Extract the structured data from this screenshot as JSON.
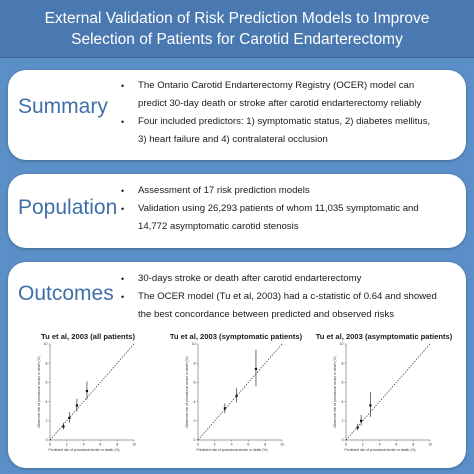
{
  "title": {
    "line1": "External Validation of Risk Prediction Models to Improve",
    "line2": "Selection of Patients for Carotid Endarterectomy"
  },
  "summary": {
    "label": "Summary",
    "bullets": [
      {
        "l1": "The Ontario Carotid Endarterectomy Registry (OCER) model can",
        "l2": "predict 30-day death or stroke after carotid endarterectomy reliably"
      },
      {
        "l1": "Four included predictors: 1) symptomatic status, 2) diabetes mellitus,",
        "l2": "3) heart failure and 4) contralateral occlusion"
      }
    ]
  },
  "population": {
    "label": "Population",
    "bullets": [
      {
        "l1": "Assessment of 17 risk prediction models",
        "l2": ""
      },
      {
        "l1": "Validation using 26,293 patients of whom 11,035 symptomatic and",
        "l2": "14,772 asymptomatic carotid stenosis"
      }
    ]
  },
  "outcomes": {
    "label": "Outcomes",
    "bullets": [
      {
        "l1": "30-days stroke or death after carotid endarterectomy",
        "l2": ""
      },
      {
        "l1": "The OCER model (Tu et al, 2003) had a c-statistic of 0.64 and showed",
        "l2": "the best concordance between predicted and observed risks"
      }
    ]
  },
  "bullet_glyph": "•",
  "colors": {
    "background": "#5b8fc7",
    "title_bar": "#4a78b0",
    "label": "#3f6fa8"
  },
  "chart_data": [
    {
      "type": "scatter",
      "title": "Tu et al, 2003 (all patients)",
      "xlabel": "Predicted risk of procedural stroke or death (%)",
      "ylabel": "Observed risk of procedural stroke or death (%)",
      "xlim": [
        0,
        10
      ],
      "ylim": [
        0,
        10
      ],
      "ticks": [
        0,
        2,
        4,
        6,
        8,
        10
      ],
      "reference_line": "diagonal",
      "points": [
        {
          "x": 1.6,
          "y": 1.4,
          "lo": 1.1,
          "hi": 1.8
        },
        {
          "x": 2.3,
          "y": 2.3,
          "lo": 1.8,
          "hi": 2.9
        },
        {
          "x": 3.2,
          "y": 3.6,
          "lo": 3.0,
          "hi": 4.3
        },
        {
          "x": 4.4,
          "y": 5.1,
          "lo": 4.2,
          "hi": 6.1
        }
      ]
    },
    {
      "type": "scatter",
      "title": "Tu et al, 2003 (symptomatic patients)",
      "xlabel": "Predicted risk of procedural stroke or death (%)",
      "ylabel": "Observed risk of procedural stroke or death (%)",
      "xlim": [
        0,
        10
      ],
      "ylim": [
        0,
        10
      ],
      "ticks": [
        0,
        2,
        4,
        6,
        8,
        10
      ],
      "reference_line": "diagonal",
      "points": [
        {
          "x": 3.2,
          "y": 3.3,
          "lo": 2.8,
          "hi": 3.8
        },
        {
          "x": 4.6,
          "y": 4.6,
          "lo": 3.9,
          "hi": 5.4
        },
        {
          "x": 6.9,
          "y": 7.4,
          "lo": 5.6,
          "hi": 9.4
        }
      ]
    },
    {
      "type": "scatter",
      "title": "Tu et al, 2003 (asymptomatic patients)",
      "xlabel": "Predicted risk of procedural stroke or death (%)",
      "ylabel": "Observed risk of procedural stroke or death (%)",
      "xlim": [
        0,
        10
      ],
      "ylim": [
        0,
        10
      ],
      "ticks": [
        0,
        2,
        4,
        6,
        8,
        10
      ],
      "reference_line": "diagonal",
      "points": [
        {
          "x": 1.4,
          "y": 1.3,
          "lo": 1.0,
          "hi": 1.7
        },
        {
          "x": 1.8,
          "y": 2.0,
          "lo": 1.5,
          "hi": 2.6
        },
        {
          "x": 2.9,
          "y": 3.6,
          "lo": 2.4,
          "hi": 5.0
        }
      ]
    }
  ]
}
